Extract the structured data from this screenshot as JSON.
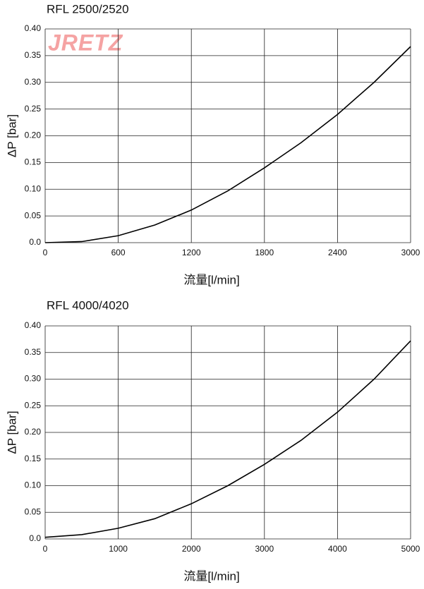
{
  "logo": "JRETZ",
  "chart_data": [
    {
      "type": "line",
      "title": "RFL 2500/2520",
      "xlabel": "流量[l/min]",
      "ylabel": "ΔP [bar]",
      "x": [
        0,
        300,
        600,
        900,
        1200,
        1500,
        1800,
        2100,
        2400,
        2700,
        3000
      ],
      "series": [
        {
          "color": "#000000",
          "values": [
            0.0,
            0.002,
            0.013,
            0.033,
            0.061,
            0.097,
            0.14,
            0.187,
            0.24,
            0.3,
            0.367
          ]
        }
      ],
      "xlim": [
        0,
        3000
      ],
      "xticks": [
        0,
        600,
        1200,
        1800,
        2400,
        3000
      ],
      "ylim": [
        0,
        0.4
      ],
      "yticks": [
        {
          "value": 0,
          "label": "0.0"
        },
        0.05,
        {
          "value": 0.1,
          "label": "0.10"
        },
        0.15,
        {
          "value": 0.2,
          "label": "0.20"
        },
        0.25,
        {
          "value": 0.3,
          "label": "0.30"
        },
        0.35,
        {
          "value": 0.4,
          "label": "0.40"
        }
      ],
      "grid": true
    },
    {
      "type": "line",
      "title": "RFL 4000/4020",
      "xlabel": "流量[l/min]",
      "ylabel": "ΔP [bar]",
      "x": [
        0,
        500,
        1000,
        1500,
        2000,
        2500,
        3000,
        3500,
        4000,
        4500,
        5000
      ],
      "series": [
        {
          "color": "#000000",
          "values": [
            0.003,
            0.008,
            0.02,
            0.038,
            0.066,
            0.1,
            0.14,
            0.185,
            0.238,
            0.3,
            0.372
          ]
        }
      ],
      "xlim": [
        0,
        5000
      ],
      "xticks": [
        0,
        1000,
        2000,
        3000,
        4000,
        5000
      ],
      "ylim": [
        0,
        0.4
      ],
      "yticks": [
        {
          "value": 0,
          "label": "0.0"
        },
        0.05,
        {
          "value": 0.1,
          "label": "0.10"
        },
        0.15,
        {
          "value": 0.2,
          "label": "0.20"
        },
        0.25,
        {
          "value": 0.3,
          "label": "0.30"
        },
        0.35,
        {
          "value": 0.4,
          "label": "0.40"
        }
      ],
      "grid": true
    }
  ]
}
